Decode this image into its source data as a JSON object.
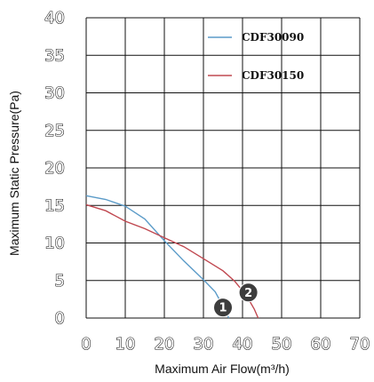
{
  "chart_data": {
    "type": "line",
    "title": "",
    "xlabel": "Maximum Air Flow(m³/h)",
    "ylabel": "Maximum Static Pressure(Pa)",
    "xlim": [
      0,
      70
    ],
    "ylim": [
      0,
      40
    ],
    "x_ticks": [
      "0",
      "10",
      "20",
      "30",
      "40",
      "50",
      "60",
      "70"
    ],
    "y_ticks": [
      "0",
      "5",
      "10",
      "15",
      "20",
      "25",
      "30",
      "35",
      "40"
    ],
    "grid": true,
    "legend_position": "top-right",
    "series": [
      {
        "name": "CDF30090",
        "color": "#5b9bc8",
        "points": [
          [
            0,
            16.3
          ],
          [
            5,
            15.8
          ],
          [
            10,
            14.9
          ],
          [
            15,
            13.2
          ],
          [
            20,
            10.3
          ],
          [
            25,
            7.6
          ],
          [
            30,
            5.1
          ],
          [
            33,
            3.5
          ],
          [
            35,
            1.6
          ],
          [
            36.5,
            0
          ]
        ]
      },
      {
        "name": "CDF30150",
        "color": "#c04850",
        "points": [
          [
            0,
            15.1
          ],
          [
            5,
            14.3
          ],
          [
            10,
            12.9
          ],
          [
            15,
            11.9
          ],
          [
            20,
            10.7
          ],
          [
            25,
            9.5
          ],
          [
            30,
            7.9
          ],
          [
            35,
            6.3
          ],
          [
            38,
            4.9
          ],
          [
            41,
            3.0
          ],
          [
            43,
            1.2
          ],
          [
            44,
            0
          ]
        ]
      }
    ],
    "annotations": [
      {
        "label": "1",
        "x": 35,
        "y": 1.4
      },
      {
        "label": "2",
        "x": 41.5,
        "y": 3.4
      }
    ]
  }
}
